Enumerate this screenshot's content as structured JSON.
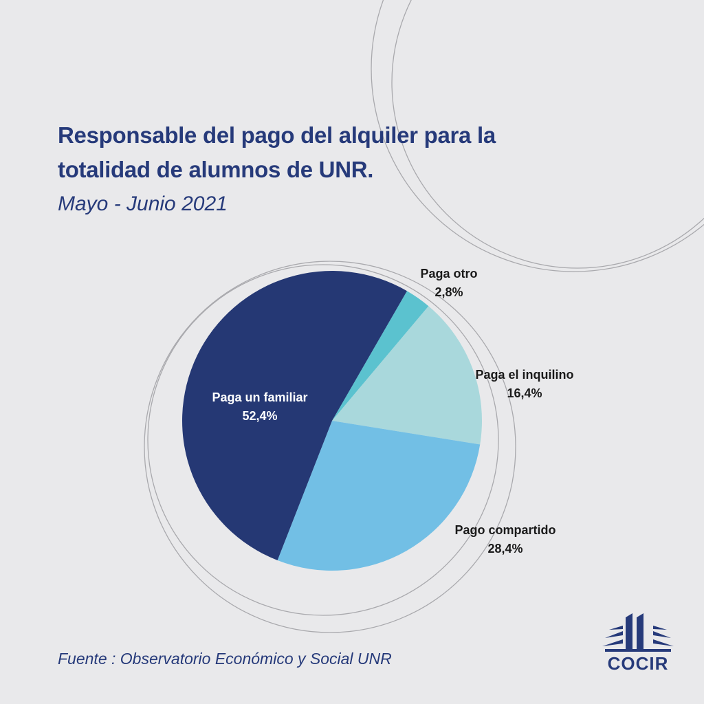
{
  "header": {
    "title": "Responsable del pago del alquiler para la totalidad de alumnos de UNR.",
    "subtitle": "Mayo - Junio 2021"
  },
  "footer": {
    "source": "Fuente : Observatorio Económico y Social  UNR",
    "logo_text": "COCIR"
  },
  "colors": {
    "background": "#e9e9eb",
    "title": "#263a7a"
  },
  "chart_data": {
    "type": "pie",
    "title": "Responsable del pago del alquiler para la totalidad de alumnos de UNR.",
    "subtitle": "Mayo - Junio 2021",
    "slices": [
      {
        "name": "Paga otro",
        "value": 2.8,
        "label": "2,8%",
        "color": "#5bc2cf"
      },
      {
        "name": "Paga el inquilino",
        "value": 16.4,
        "label": "16,4%",
        "color": "#a9d8dc"
      },
      {
        "name": "Pago compartido",
        "value": 28.4,
        "label": "28,4%",
        "color": "#72bfe5"
      },
      {
        "name": "Paga un familiar",
        "value": 52.4,
        "label": "52,4%",
        "color": "#253874"
      }
    ]
  }
}
